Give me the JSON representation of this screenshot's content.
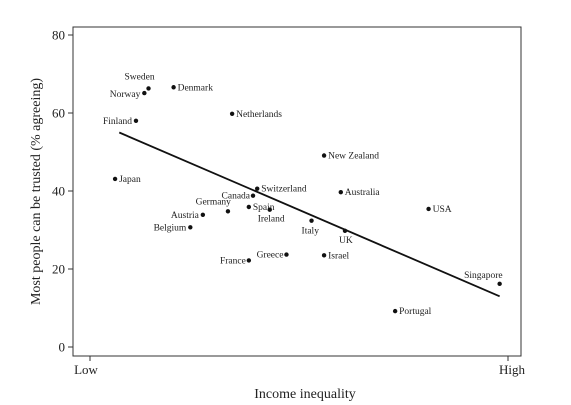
{
  "chart_data": {
    "type": "scatter",
    "title": "",
    "xlabel": "Income inequality",
    "ylabel": "Most people can be trusted (% agreeing)",
    "x_tick_labels": {
      "low": "Low",
      "high": "High"
    },
    "xlim": [
      0,
      10
    ],
    "ylim": [
      0,
      80
    ],
    "yticks": [
      0,
      20,
      40,
      60,
      80
    ],
    "grid": false,
    "legend": "none",
    "points": [
      {
        "label": "Sweden",
        "x": 1.4,
        "y": 66.3
      },
      {
        "label": "Norway",
        "x": 1.3,
        "y": 65.1
      },
      {
        "label": "Denmark",
        "x": 2.0,
        "y": 66.6
      },
      {
        "label": "Finland",
        "x": 1.1,
        "y": 58.0
      },
      {
        "label": "Netherlands",
        "x": 3.4,
        "y": 59.8
      },
      {
        "label": "New Zealand",
        "x": 5.6,
        "y": 49.1
      },
      {
        "label": "Japan",
        "x": 0.6,
        "y": 43.1
      },
      {
        "label": "Switzerland",
        "x": 4.0,
        "y": 40.6
      },
      {
        "label": "Canada",
        "x": 3.9,
        "y": 38.8
      },
      {
        "label": "Australia",
        "x": 6.0,
        "y": 39.7
      },
      {
        "label": "Germany",
        "x": 3.3,
        "y": 34.8
      },
      {
        "label": "Spain",
        "x": 3.8,
        "y": 35.9
      },
      {
        "label": "Ireland",
        "x": 4.3,
        "y": 35.2
      },
      {
        "label": "Austria",
        "x": 2.7,
        "y": 33.9
      },
      {
        "label": "Belgium",
        "x": 2.4,
        "y": 30.7
      },
      {
        "label": "Italy",
        "x": 5.3,
        "y": 32.4
      },
      {
        "label": "UK",
        "x": 6.1,
        "y": 29.8
      },
      {
        "label": "USA",
        "x": 8.1,
        "y": 35.4
      },
      {
        "label": "Greece",
        "x": 4.7,
        "y": 23.7
      },
      {
        "label": "France",
        "x": 3.8,
        "y": 22.2
      },
      {
        "label": "Israel",
        "x": 5.6,
        "y": 23.5
      },
      {
        "label": "Singapore",
        "x": 9.8,
        "y": 16.2
      },
      {
        "label": "Portugal",
        "x": 7.3,
        "y": 9.2
      }
    ],
    "trend_line": {
      "x": [
        0.7,
        9.8
      ],
      "y": [
        55.0,
        13.0
      ]
    }
  }
}
